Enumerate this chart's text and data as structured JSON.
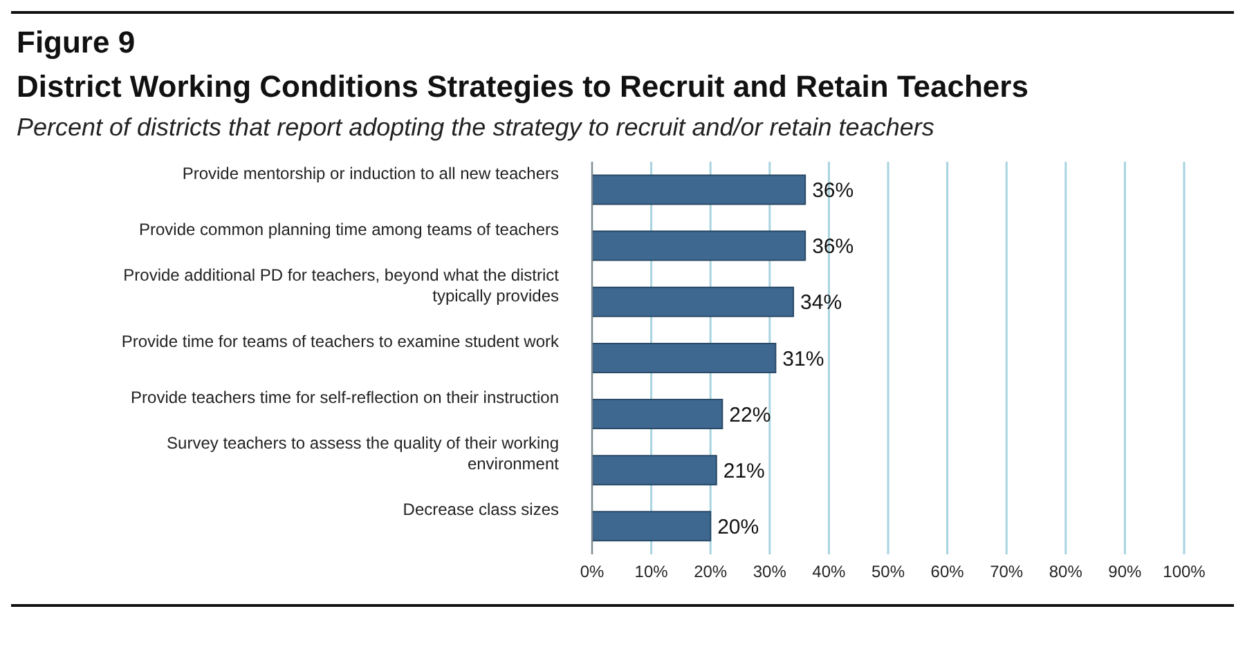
{
  "chart_data": {
    "type": "bar",
    "orientation": "horizontal",
    "title": "District Working Conditions Strategies to Recruit and Retain Teachers",
    "subtitle": "Percent of districts that report adopting the strategy to recruit and/or retain teachers",
    "annotations": [
      "Figure 9"
    ],
    "categories": [
      "Provide mentorship or induction to all new teachers",
      "Provide common planning time among teams of teachers",
      "Provide additional PD for teachers, beyond what the district typically provides",
      "Provide time for teams of teachers to examine student work",
      "Provide teachers time for self-reflection on their instruction",
      "Survey teachers to assess the quality of their working environment",
      "Decrease class sizes"
    ],
    "values": [
      36,
      36,
      34,
      31,
      22,
      21,
      20
    ],
    "value_labels": [
      "36%",
      "36%",
      "34%",
      "31%",
      "22%",
      "21%",
      "20%"
    ],
    "color": "#3e6890",
    "xlim": [
      0,
      100
    ],
    "xticks": [
      {
        "value": 0,
        "label": "0%"
      },
      {
        "value": 10,
        "label": "10%"
      },
      {
        "value": 20,
        "label": "20%"
      },
      {
        "value": 30,
        "label": "30%"
      },
      {
        "value": 40,
        "label": "40%"
      },
      {
        "value": 50,
        "label": "50%"
      },
      {
        "value": 60,
        "label": "60%"
      },
      {
        "value": 70,
        "label": "70%"
      },
      {
        "value": 80,
        "label": "80%"
      },
      {
        "value": 90,
        "label": "90%"
      },
      {
        "value": 100,
        "label": "100%"
      }
    ],
    "grid": "x"
  }
}
